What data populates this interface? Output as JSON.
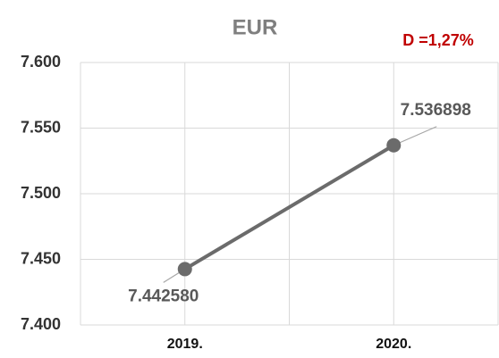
{
  "chart_data": {
    "type": "line",
    "title": "EUR",
    "annotation": "D =1,27%",
    "categories": [
      "2019.",
      "2020."
    ],
    "series": [
      {
        "name": "EUR",
        "color": "#6b6b6b",
        "values": [
          7.44258,
          7.536898
        ],
        "value_labels": [
          "7.442580",
          "7.536898"
        ]
      }
    ],
    "ylim": [
      7.4,
      7.6
    ],
    "yticks": [
      {
        "value": 7.4,
        "label": "7.400"
      },
      {
        "value": 7.45,
        "label": "7.450"
      },
      {
        "value": 7.5,
        "label": "7.500"
      },
      {
        "value": 7.55,
        "label": "7.550"
      },
      {
        "value": 7.6,
        "label": "7.600"
      }
    ],
    "grid": true
  }
}
